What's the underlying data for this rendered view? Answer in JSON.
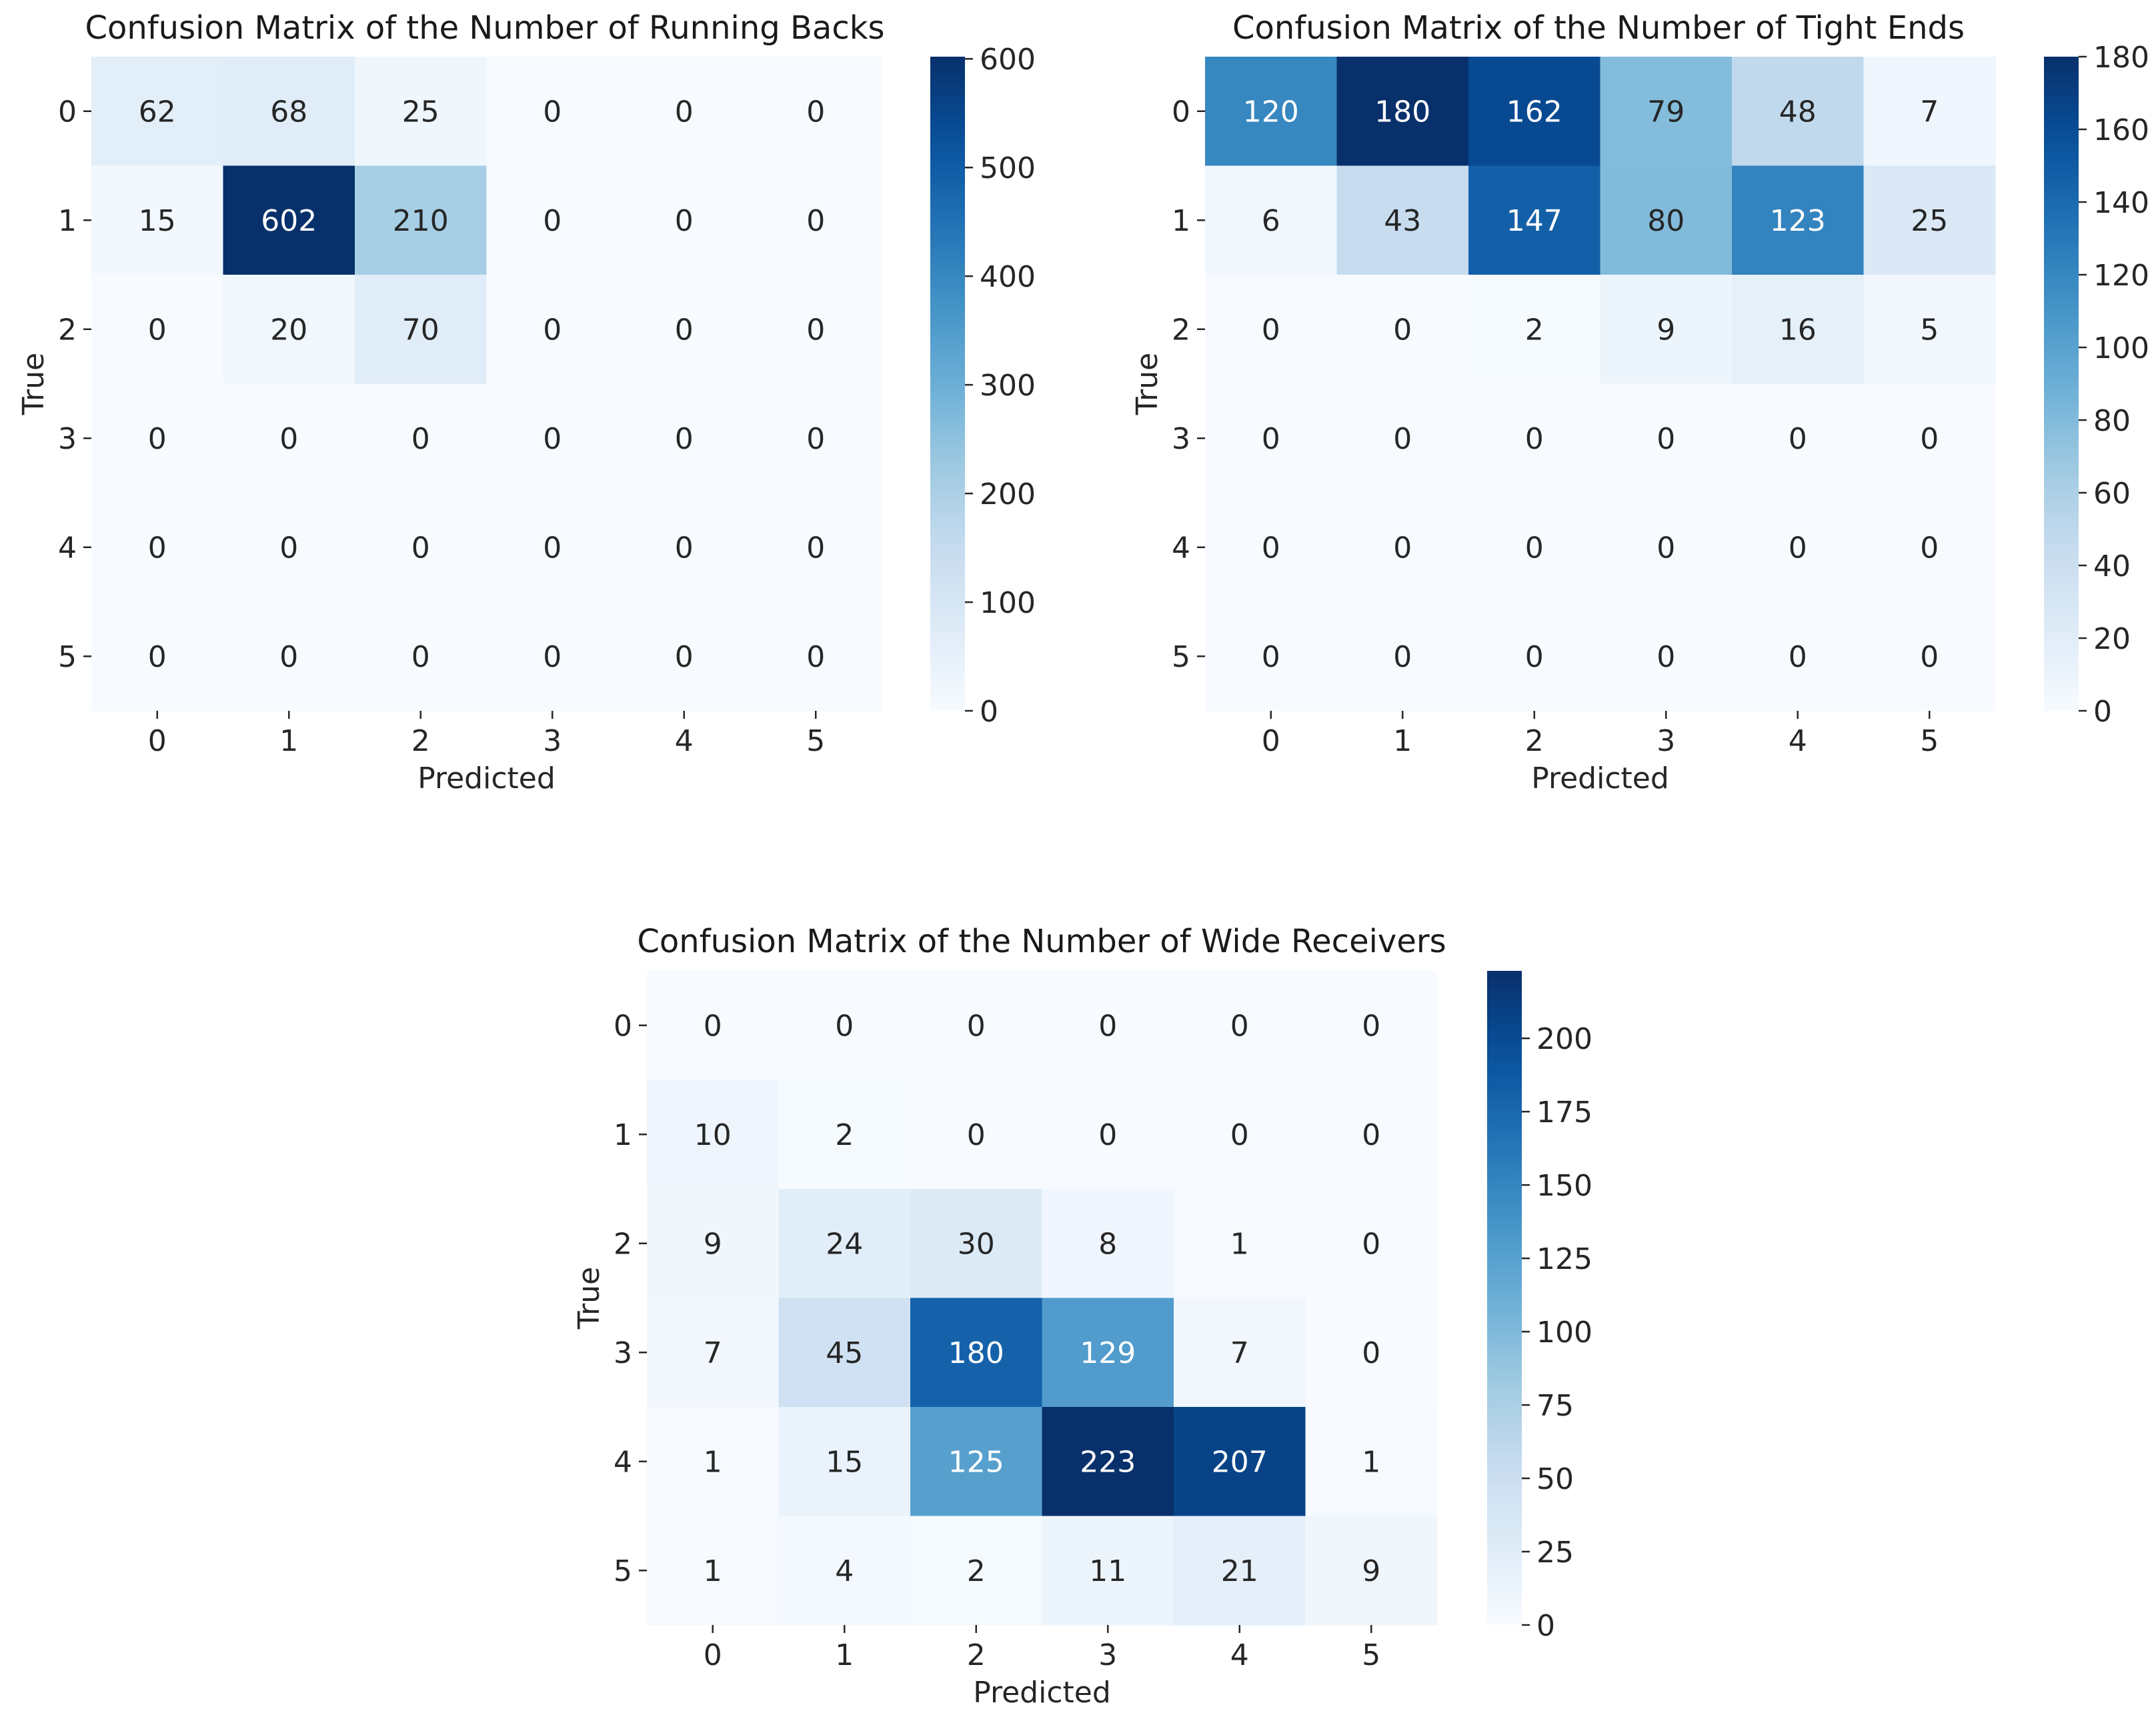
{
  "chart_data": [
    {
      "type": "heatmap",
      "title": "Confusion Matrix of the Number of Running Backs",
      "xlabel": "Predicted",
      "ylabel": "True",
      "x_categories": [
        "0",
        "1",
        "2",
        "3",
        "4",
        "5"
      ],
      "y_categories": [
        "0",
        "1",
        "2",
        "3",
        "4",
        "5"
      ],
      "values": [
        [
          62,
          68,
          25,
          0,
          0,
          0
        ],
        [
          15,
          602,
          210,
          0,
          0,
          0
        ],
        [
          0,
          20,
          70,
          0,
          0,
          0
        ],
        [
          0,
          0,
          0,
          0,
          0,
          0
        ],
        [
          0,
          0,
          0,
          0,
          0,
          0
        ],
        [
          0,
          0,
          0,
          0,
          0,
          0
        ]
      ],
      "colorbar": {
        "range": [
          0,
          602
        ],
        "ticks": [
          0,
          100,
          200,
          300,
          400,
          500,
          600
        ],
        "tick_labels": [
          "0",
          "100",
          "200",
          "300",
          "400",
          "500",
          "600"
        ]
      },
      "colormap": "Blues"
    },
    {
      "type": "heatmap",
      "title": "Confusion Matrix of the Number of Tight Ends",
      "xlabel": "Predicted",
      "ylabel": "True",
      "x_categories": [
        "0",
        "1",
        "2",
        "3",
        "4",
        "5"
      ],
      "y_categories": [
        "0",
        "1",
        "2",
        "3",
        "4",
        "5"
      ],
      "values": [
        [
          120,
          180,
          162,
          79,
          48,
          7
        ],
        [
          6,
          43,
          147,
          80,
          123,
          25
        ],
        [
          0,
          0,
          2,
          9,
          16,
          5
        ],
        [
          0,
          0,
          0,
          0,
          0,
          0
        ],
        [
          0,
          0,
          0,
          0,
          0,
          0
        ],
        [
          0,
          0,
          0,
          0,
          0,
          0
        ]
      ],
      "colorbar": {
        "range": [
          0,
          180
        ],
        "ticks": [
          0,
          20,
          40,
          60,
          80,
          100,
          120,
          140,
          160,
          180
        ],
        "tick_labels": [
          "0",
          "20",
          "40",
          "60",
          "80",
          "100",
          "120",
          "140",
          "160",
          "180"
        ]
      },
      "colormap": "Blues"
    },
    {
      "type": "heatmap",
      "title": "Confusion Matrix of the Number of Wide Receivers",
      "xlabel": "Predicted",
      "ylabel": "True",
      "x_categories": [
        "0",
        "1",
        "2",
        "3",
        "4",
        "5"
      ],
      "y_categories": [
        "0",
        "1",
        "2",
        "3",
        "4",
        "5"
      ],
      "values": [
        [
          0,
          0,
          0,
          0,
          0,
          0
        ],
        [
          10,
          2,
          0,
          0,
          0,
          0
        ],
        [
          9,
          24,
          30,
          8,
          1,
          0
        ],
        [
          7,
          45,
          180,
          129,
          7,
          0
        ],
        [
          1,
          15,
          125,
          223,
          207,
          1
        ],
        [
          1,
          4,
          2,
          11,
          21,
          9
        ]
      ],
      "colorbar": {
        "range": [
          0,
          223
        ],
        "ticks": [
          0,
          25,
          50,
          75,
          100,
          125,
          150,
          175,
          200
        ],
        "tick_labels": [
          "0",
          "25",
          "50",
          "75",
          "100",
          "125",
          "150",
          "175",
          "200"
        ]
      },
      "colormap": "Blues"
    }
  ]
}
